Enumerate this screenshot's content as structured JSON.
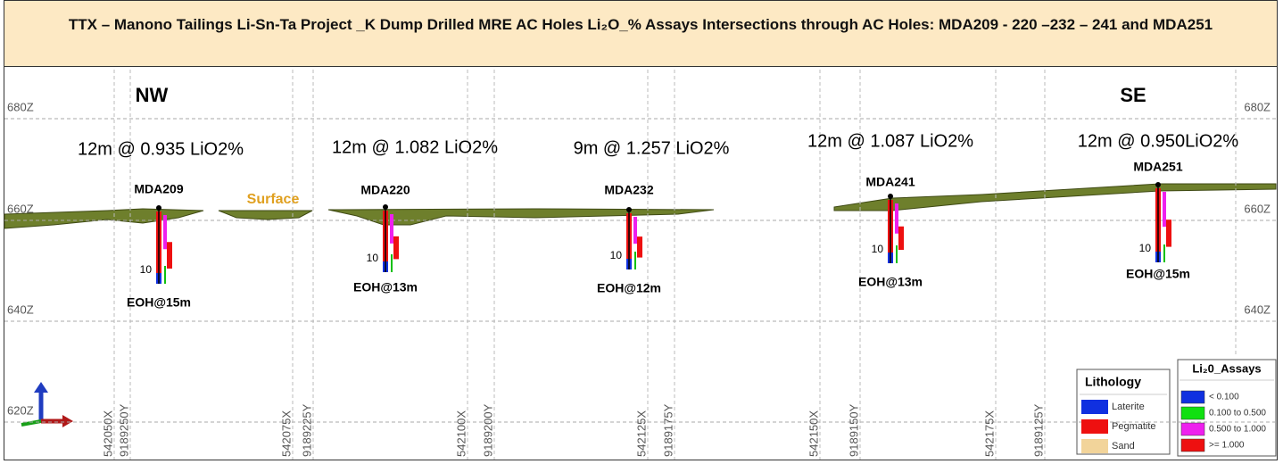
{
  "title": "TTX – Manono Tailings Li-Sn-Ta Project _K Dump Drilled MRE AC Holes Li₂O_% Assays Intersections through AC Holes: MDA209 - 220 –232 – 241 and MDA251",
  "directions": [
    "NW",
    "SE"
  ],
  "elevation_labels": [
    "680Z",
    "660Z",
    "640Z",
    "620Z"
  ],
  "surface_label": "Surface",
  "holes": [
    {
      "name": "MDA209",
      "intercept": "12m @ 0.935 LiO2%",
      "eoh": "EOH@15m",
      "depth_label": "10"
    },
    {
      "name": "MDA220",
      "intercept": "12m @ 1.082 LiO2%",
      "eoh": "EOH@13m",
      "depth_label": "10"
    },
    {
      "name": "MDA232",
      "intercept": "9m @ 1.257 LiO2%",
      "eoh": "EOH@12m",
      "depth_label": "10"
    },
    {
      "name": "MDA241",
      "intercept": "12m @ 1.087 LiO2%",
      "eoh": "EOH@13m",
      "depth_label": "10"
    },
    {
      "name": "MDA251",
      "intercept": "12m @ 0.950LiO2%",
      "eoh": "EOH@15m",
      "depth_label": "10"
    }
  ],
  "grid_labels": [
    "542050X",
    "9189250Y",
    "542075X",
    "9189225Y",
    "542100X",
    "9189200Y",
    "542125X",
    "9189175Y",
    "542150X",
    "9189150Y",
    "542175X",
    "9189125Y"
  ],
  "legends": {
    "lithology": {
      "title": "Lithology",
      "items": [
        "Laterite",
        "Pegmatite",
        "Sand"
      ]
    },
    "assays": {
      "title": "Li₂0_Assays",
      "items": [
        "< 0.100",
        "0.100 to 0.500",
        "0.500 to 1.000",
        ">= 1.000"
      ]
    }
  }
}
